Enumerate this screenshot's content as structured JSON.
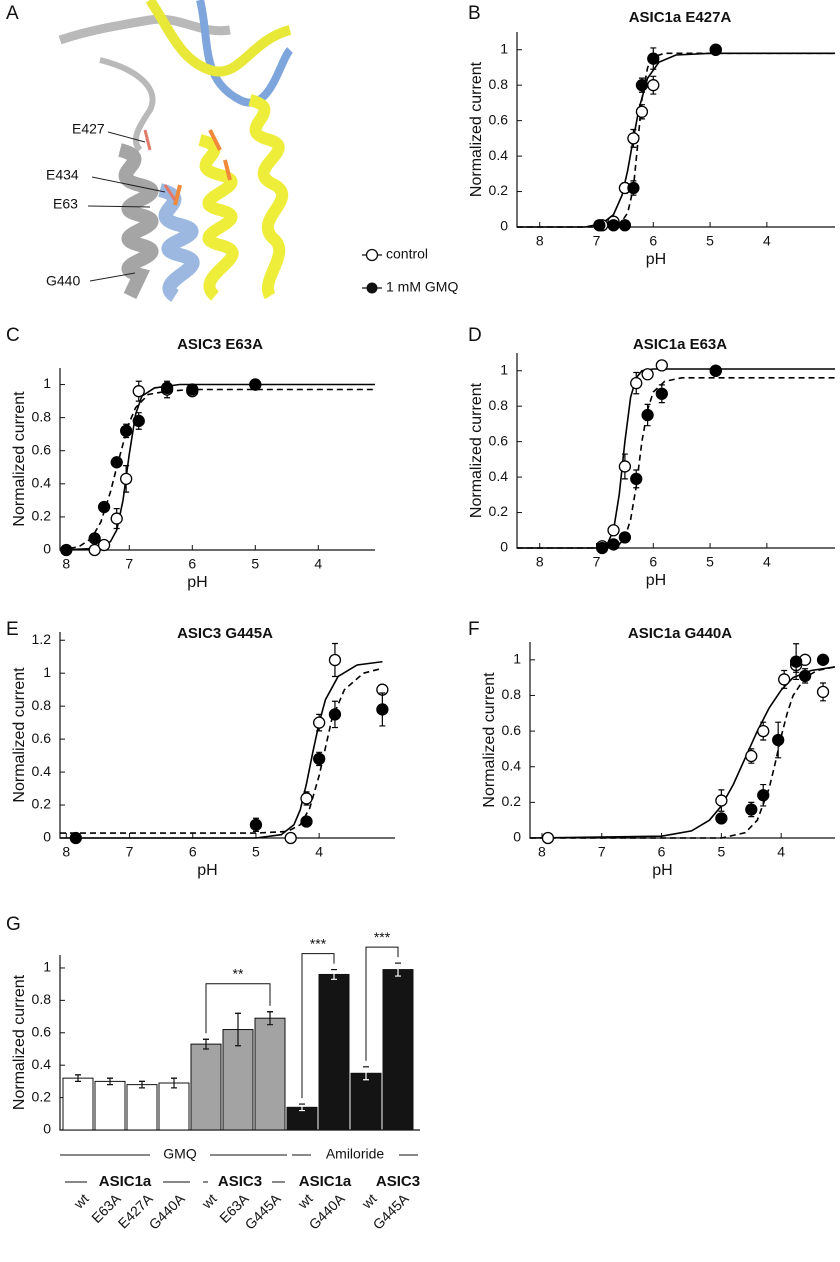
{
  "panel_a": {
    "letter": "A",
    "labels": [
      "E427",
      "E434",
      "E63",
      "G440"
    ]
  },
  "chart_data": [
    {
      "type": "scatter",
      "panel": "B",
      "title": "ASIC1a E427A",
      "x_label": "pH",
      "y_label": "Normalized current",
      "xlim": [
        8.4,
        2.8
      ],
      "ylim": [
        0,
        1.1
      ],
      "xticks": [
        8,
        7,
        6,
        5,
        4
      ],
      "yticks": [
        0,
        0.2,
        0.4,
        0.6,
        0.8,
        1
      ],
      "series": [
        {
          "name": "control",
          "color": "#000000",
          "marker": "open",
          "line": "solid",
          "x": [
            6.9,
            6.7,
            6.5,
            6.35,
            6.2,
            6.0,
            4.9
          ],
          "values": [
            0.01,
            0.03,
            0.22,
            0.5,
            0.65,
            0.8,
            1.0
          ],
          "errors": [
            0.01,
            0.02,
            0.03,
            0.05,
            0.04,
            0.05,
            0.01
          ],
          "fit_x": [
            8.4,
            7.2,
            6.9,
            6.7,
            6.55,
            6.45,
            6.35,
            6.25,
            6.1,
            5.9,
            5.6,
            5.0,
            2.8
          ],
          "fit_y": [
            0,
            0,
            0.02,
            0.07,
            0.18,
            0.32,
            0.5,
            0.67,
            0.84,
            0.93,
            0.97,
            0.98,
            0.98
          ]
        },
        {
          "name": "1 mM GMQ",
          "color": "#000000",
          "marker": "filled",
          "line": "dashed",
          "x": [
            6.95,
            6.7,
            6.5,
            6.35,
            6.2,
            6.0,
            4.9
          ],
          "values": [
            0.01,
            0.01,
            0.01,
            0.22,
            0.8,
            0.95,
            1.0
          ],
          "errors": [
            0.01,
            0.01,
            0.01,
            0.04,
            0.04,
            0.06,
            0.01
          ],
          "fit_x": [
            8.4,
            6.9,
            6.6,
            6.45,
            6.35,
            6.28,
            6.2,
            6.1,
            6.0,
            5.8,
            2.8
          ],
          "fit_y": [
            0,
            0,
            0.01,
            0.08,
            0.22,
            0.45,
            0.72,
            0.9,
            0.96,
            0.98,
            0.98
          ]
        }
      ]
    },
    {
      "type": "scatter",
      "panel": "C",
      "title": "ASIC3 E63A",
      "x_label": "pH",
      "y_label": "Normalized current",
      "xlim": [
        8.1,
        3.1
      ],
      "ylim": [
        0,
        1.1
      ],
      "xticks": [
        8,
        7,
        6,
        5,
        4
      ],
      "yticks": [
        0,
        0.2,
        0.4,
        0.6,
        0.8,
        1
      ],
      "series": [
        {
          "color": "#000000",
          "marker": "open",
          "line": "solid",
          "x": [
            7.55,
            7.4,
            7.2,
            7.05,
            6.85,
            6.4,
            6.0,
            5.0
          ],
          "values": [
            0,
            0.03,
            0.19,
            0.43,
            0.96,
            0.97,
            0.96,
            1.0
          ],
          "errors": [
            0.01,
            0.01,
            0.06,
            0.08,
            0.06,
            0.05,
            0.02,
            0.01
          ],
          "fit_x": [
            8.1,
            7.5,
            7.3,
            7.2,
            7.1,
            7.0,
            6.9,
            6.8,
            6.6,
            6.2,
            3.1
          ],
          "fit_y": [
            0,
            0.01,
            0.05,
            0.12,
            0.3,
            0.58,
            0.82,
            0.93,
            0.98,
            1.0,
            1.0
          ]
        },
        {
          "color": "#000000",
          "marker": "filled",
          "line": "dashed",
          "x": [
            8.0,
            7.55,
            7.4,
            7.2,
            7.05,
            6.85,
            6.4,
            6.0,
            5.0
          ],
          "values": [
            0,
            0.07,
            0.26,
            0.53,
            0.72,
            0.78,
            0.98,
            0.97,
            1.0
          ],
          "errors": [
            0.01,
            0.01,
            0.02,
            0.02,
            0.04,
            0.05,
            0.03,
            0.02,
            0.01
          ],
          "fit_x": [
            8.1,
            7.8,
            7.6,
            7.45,
            7.3,
            7.2,
            7.1,
            7.0,
            6.9,
            6.7,
            6.4,
            6.0,
            3.1
          ],
          "fit_y": [
            0,
            0.02,
            0.07,
            0.17,
            0.35,
            0.5,
            0.64,
            0.77,
            0.86,
            0.94,
            0.96,
            0.97,
            0.97
          ]
        }
      ]
    },
    {
      "type": "scatter",
      "panel": "D",
      "title": "ASIC1a E63A",
      "x_label": "pH",
      "y_label": "Normalized current",
      "xlim": [
        8.4,
        2.8
      ],
      "ylim": [
        0,
        1.1
      ],
      "xticks": [
        8,
        7,
        6,
        5,
        4
      ],
      "yticks": [
        0,
        0.2,
        0.4,
        0.6,
        0.8,
        1
      ],
      "series": [
        {
          "color": "#000000",
          "marker": "open",
          "line": "solid",
          "x": [
            6.9,
            6.7,
            6.5,
            6.3,
            6.1,
            5.85,
            4.9
          ],
          "values": [
            0.01,
            0.1,
            0.46,
            0.93,
            0.98,
            1.03,
            1.0
          ],
          "errors": [
            0.01,
            0.02,
            0.07,
            0.06,
            0.02,
            0.01,
            0.01
          ],
          "fit_x": [
            8.4,
            7.0,
            6.8,
            6.7,
            6.6,
            6.5,
            6.4,
            6.3,
            6.2,
            6.0,
            2.8
          ],
          "fit_y": [
            0,
            0,
            0.03,
            0.1,
            0.3,
            0.6,
            0.85,
            0.96,
            1.0,
            1.01,
            1.01
          ]
        },
        {
          "color": "#000000",
          "marker": "filled",
          "line": "dashed",
          "x": [
            6.9,
            6.7,
            6.5,
            6.3,
            6.1,
            5.85,
            4.9
          ],
          "values": [
            0.0,
            0.02,
            0.06,
            0.39,
            0.75,
            0.87,
            1.0
          ],
          "errors": [
            0.01,
            0.01,
            0.01,
            0.05,
            0.06,
            0.05,
            0.02
          ],
          "fit_x": [
            8.4,
            6.9,
            6.6,
            6.5,
            6.4,
            6.3,
            6.2,
            6.1,
            6.0,
            5.8,
            5.5,
            2.8
          ],
          "fit_y": [
            0,
            0,
            0.02,
            0.06,
            0.16,
            0.35,
            0.6,
            0.78,
            0.88,
            0.94,
            0.96,
            0.96
          ]
        }
      ]
    },
    {
      "type": "scatter",
      "panel": "E",
      "title": "ASIC3 G445A",
      "x_label": "pH",
      "y_label": "Normalized current",
      "xlim": [
        8.1,
        2.8
      ],
      "ylim": [
        0,
        1.25
      ],
      "xticks": [
        8,
        7,
        6,
        5,
        4
      ],
      "yticks": [
        0,
        0.2,
        0.4,
        0.6,
        0.8,
        1,
        1.2
      ],
      "series": [
        {
          "color": "#000000",
          "marker": "open",
          "line": "solid",
          "x": [
            4.45,
            4.2,
            4.0,
            3.75,
            3.0
          ],
          "values": [
            0.0,
            0.24,
            0.7,
            1.08,
            0.9
          ],
          "errors": [
            0.01,
            0.04,
            0.05,
            0.1,
            0.01
          ],
          "fit_x": [
            8.1,
            5.0,
            4.6,
            4.4,
            4.3,
            4.2,
            4.1,
            4.0,
            3.9,
            3.7,
            3.4,
            3.0
          ],
          "fit_y": [
            0,
            0,
            0.02,
            0.08,
            0.17,
            0.33,
            0.52,
            0.7,
            0.84,
            0.98,
            1.05,
            1.07
          ]
        },
        {
          "color": "#000000",
          "marker": "filled",
          "line": "dashed",
          "x": [
            7.85,
            5.0,
            4.2,
            4.0,
            3.75,
            3.0
          ],
          "values": [
            0,
            0.08,
            0.1,
            0.48,
            0.75,
            0.78
          ],
          "errors": [
            0.01,
            0.04,
            0.01,
            0.04,
            0.08,
            0.1
          ],
          "fit_x": [
            8.1,
            5.0,
            4.5,
            4.3,
            4.15,
            4.0,
            3.9,
            3.8,
            3.6,
            3.3,
            3.0
          ],
          "fit_y": [
            0.03,
            0.03,
            0.04,
            0.08,
            0.18,
            0.38,
            0.55,
            0.72,
            0.9,
            1.0,
            1.03
          ]
        }
      ]
    },
    {
      "type": "scatter",
      "panel": "F",
      "title": "ASIC1a G440A",
      "x_label": "pH",
      "y_label": "Normalized current",
      "xlim": [
        8.2,
        3.1
      ],
      "ylim": [
        0,
        1.1
      ],
      "xticks": [
        8,
        7,
        6,
        5,
        4
      ],
      "yticks": [
        0,
        0.2,
        0.4,
        0.6,
        0.8,
        1
      ],
      "series": [
        {
          "color": "#000000",
          "marker": "open",
          "line": "solid",
          "x": [
            7.9,
            5.0,
            4.5,
            4.3,
            3.95,
            3.75,
            3.6,
            3.3
          ],
          "values": [
            0,
            0.21,
            0.46,
            0.6,
            0.89,
            0.97,
            1.0,
            0.82
          ],
          "errors": [
            0.01,
            0.06,
            0.04,
            0.05,
            0.05,
            0.04,
            0.01,
            0.05
          ],
          "fit_x": [
            8.2,
            6.0,
            5.5,
            5.2,
            5.0,
            4.8,
            4.6,
            4.4,
            4.2,
            4.0,
            3.8,
            3.5,
            3.1
          ],
          "fit_y": [
            0,
            0.01,
            0.04,
            0.1,
            0.18,
            0.3,
            0.45,
            0.6,
            0.73,
            0.83,
            0.9,
            0.94,
            0.96
          ]
        },
        {
          "color": "#000000",
          "marker": "filled",
          "line": "dashed",
          "x": [
            5.0,
            4.5,
            4.3,
            4.05,
            3.75,
            3.6,
            3.3
          ],
          "values": [
            0.11,
            0.16,
            0.24,
            0.55,
            0.99,
            0.91,
            1.0
          ],
          "errors": [
            0.01,
            0.04,
            0.06,
            0.1,
            0.1,
            0.04,
            0.01
          ],
          "fit_x": [
            8.2,
            5.0,
            4.6,
            4.4,
            4.2,
            4.1,
            4.0,
            3.9,
            3.8,
            3.6,
            3.4,
            3.1
          ],
          "fit_y": [
            0,
            0,
            0.03,
            0.1,
            0.28,
            0.42,
            0.57,
            0.7,
            0.8,
            0.9,
            0.94,
            0.96
          ]
        }
      ]
    },
    {
      "type": "bar",
      "panel": "G",
      "y_label": "Normalized current",
      "ylim": [
        0,
        1.08
      ],
      "yticks": [
        0,
        0.2,
        0.4,
        0.6,
        0.8,
        1
      ],
      "categories": [
        "wt",
        "E63A",
        "E427A",
        "G440A",
        "wt",
        "E63A",
        "G445A",
        "wt",
        "G440A",
        "wt",
        "G445A"
      ],
      "values": [
        0.32,
        0.3,
        0.28,
        0.29,
        0.53,
        0.62,
        0.69,
        0.14,
        0.96,
        0.35,
        0.99
      ],
      "errors": [
        0.02,
        0.02,
        0.02,
        0.03,
        0.03,
        0.1,
        0.04,
        0.02,
        0.03,
        0.04,
        0.04
      ],
      "colors": [
        "#ffffff",
        "#ffffff",
        "#ffffff",
        "#ffffff",
        "#a3a3a3",
        "#a3a3a3",
        "#a3a3a3",
        "#141414",
        "#141414",
        "#141414",
        "#141414"
      ],
      "annotations": [
        "**",
        "***",
        "***"
      ],
      "groups": [
        "GMQ",
        "Amiloride"
      ],
      "subgroups": [
        "ASIC1a",
        "ASIC3",
        "ASIC1a",
        "ASIC3"
      ]
    }
  ]
}
